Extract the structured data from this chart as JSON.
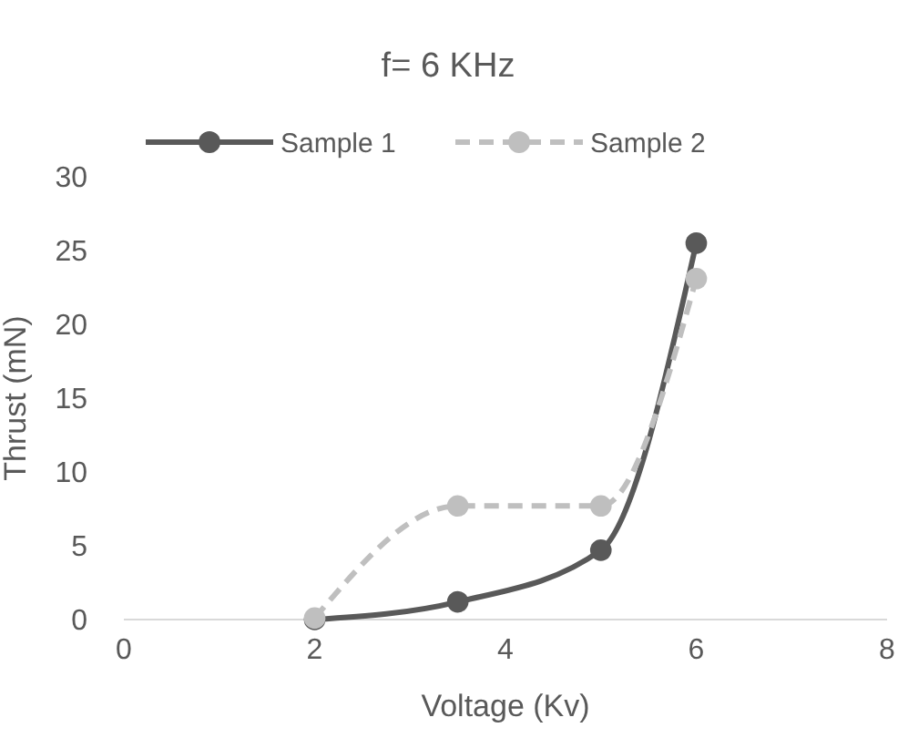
{
  "chart_data": {
    "type": "line",
    "title": "f= 6 KHz",
    "xlabel": "Voltage (Kv)",
    "ylabel": "Thrust (mN)",
    "xlim": [
      0,
      8
    ],
    "xticks": [
      0,
      2,
      4,
      6,
      8
    ],
    "ylim": [
      0,
      30
    ],
    "yticks": [
      0,
      5,
      10,
      15,
      20,
      25,
      30
    ],
    "grid": false,
    "legend": "top",
    "marker": "circle",
    "series": [
      {
        "name": "Sample 1",
        "color": "#595959",
        "x": [
          2,
          3.5,
          5,
          6
        ],
        "values": [
          0,
          1.2,
          4.7,
          25.5
        ],
        "line_style": "solid"
      },
      {
        "name": "Sample 2",
        "color": "#bfbfbf",
        "x": [
          2,
          3.5,
          5,
          6
        ],
        "values": [
          0.1,
          7.7,
          7.7,
          23.1
        ],
        "line_style": "dashed"
      }
    ]
  }
}
